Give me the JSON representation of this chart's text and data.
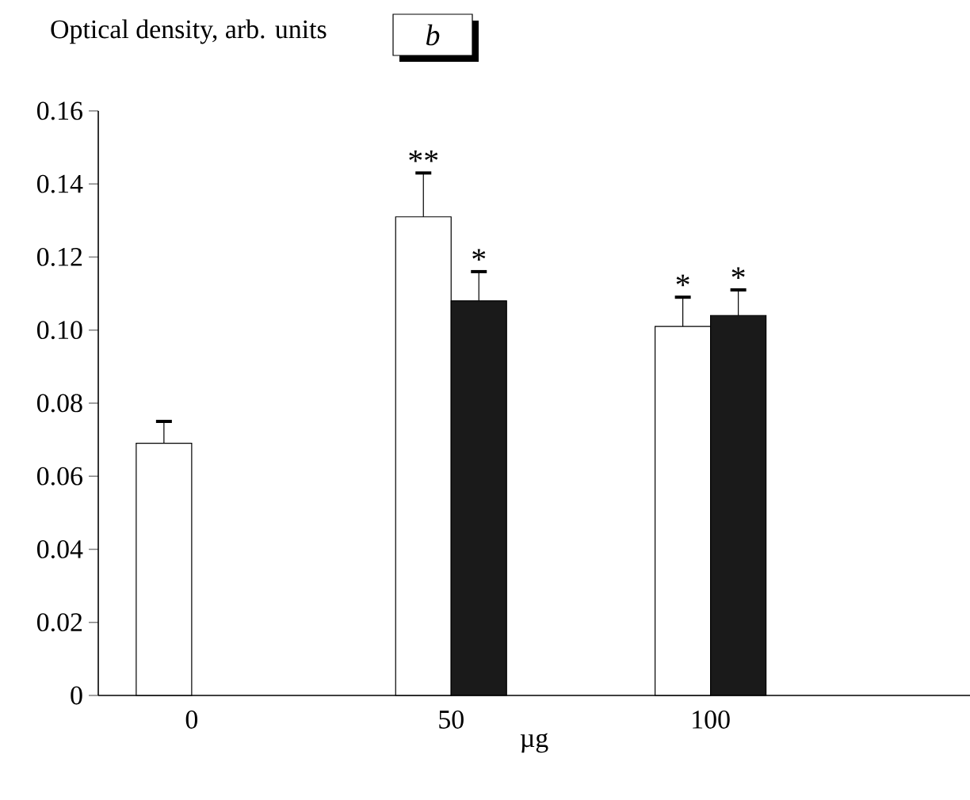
{
  "chart_data": {
    "type": "bar",
    "title": "b",
    "ylabel": "Optical density, arb. units",
    "xlabel": "µg",
    "categories": [
      "0",
      "50",
      "100"
    ],
    "series": [
      {
        "color": "#ffffff",
        "values": [
          0.069,
          0.131,
          0.101
        ],
        "errors": [
          [
            0.069,
            0.075
          ],
          [
            0.131,
            0.143
          ],
          [
            0.101,
            0.109
          ]
        ]
      },
      {
        "color": "#1a1a1a",
        "values": [
          null,
          0.108,
          0.104
        ],
        "errors": [
          null,
          [
            0.108,
            0.116
          ],
          [
            0.104,
            0.111
          ]
        ]
      }
    ],
    "ylim": [
      0,
      0.16
    ],
    "yticks": [
      {
        "value": 0,
        "label": "0"
      },
      {
        "value": 0.02,
        "label": "0.02"
      },
      {
        "value": 0.04,
        "label": "0.04"
      },
      {
        "value": 0.06,
        "label": "0.06"
      },
      {
        "value": 0.08,
        "label": "0.08"
      },
      {
        "value": 0.1,
        "label": "0.10"
      },
      {
        "value": 0.12,
        "label": "0.12"
      },
      {
        "value": 0.14,
        "label": "0.14"
      },
      {
        "value": 0.16,
        "label": "0.16"
      }
    ],
    "annotations": [
      {
        "text": "**",
        "x": "50",
        "y": 0.131
      },
      {
        "text": "*",
        "x": "50",
        "y": 0.108
      },
      {
        "text": "*",
        "x": "100",
        "y": 0.101
      },
      {
        "text": "*",
        "x": "100",
        "y": 0.104
      }
    ],
    "grid": false
  }
}
